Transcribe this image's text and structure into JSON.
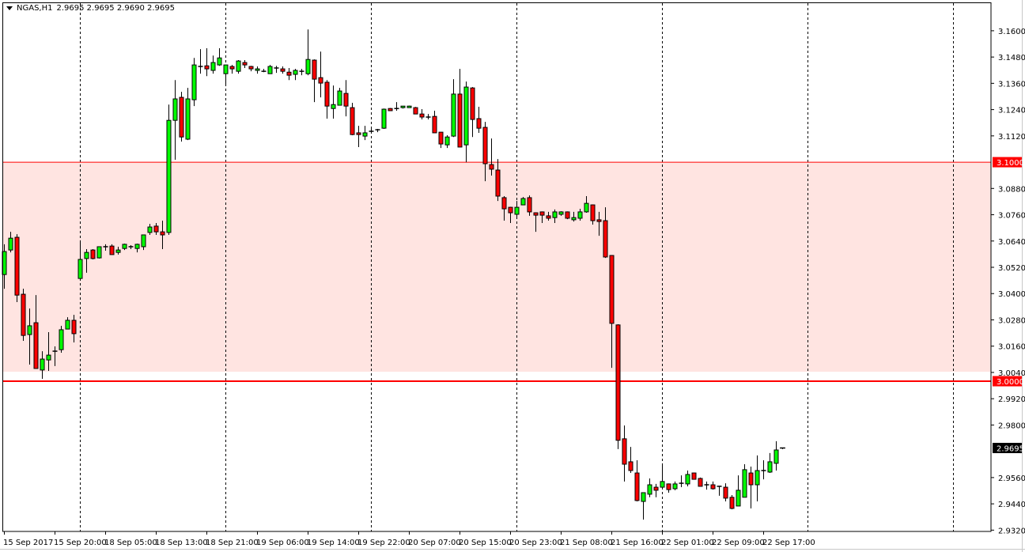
{
  "header": {
    "symbol": "NGAS,H1",
    "ohlc_readout": "2.9695 2.9695 2.9690 2.9695",
    "menu_icon": "triangle-down-icon"
  },
  "colors": {
    "bull": "#00FF00",
    "bear": "#FF0000",
    "outline": "#000000",
    "zone_fill": "#FFE4E1",
    "level_line": "#FF0000",
    "background": "#FFFFFF"
  },
  "chart_data": {
    "type": "candlestick",
    "title": "NGAS,H1",
    "timeframe": "H1",
    "ylim": [
      2.9314,
      3.1726
    ],
    "grid": "vertical dashed",
    "y_ticks": [
      "3.1600",
      "3.1480",
      "3.1360",
      "3.1240",
      "3.1120",
      "3.0880",
      "3.0760",
      "3.0640",
      "3.0520",
      "3.0400",
      "3.0280",
      "3.0160",
      "3.0040",
      "2.9920",
      "2.9800",
      "2.9560",
      "2.9440",
      "2.9320"
    ],
    "x_labels": [
      "15 Sep 2017",
      "15 Sep 20:00",
      "18 Sep 05:00",
      "18 Sep 13:00",
      "18 Sep 21:00",
      "19 Sep 06:00",
      "19 Sep 14:00",
      "19 Sep 22:00",
      "20 Sep 07:00",
      "20 Sep 15:00",
      "20 Sep 23:00",
      "21 Sep 08:00",
      "21 Sep 16:00",
      "22 Sep 01:00",
      "22 Sep 09:00",
      "22 Sep 17:00"
    ],
    "x_label_every_bars": 8,
    "zone": {
      "from": 3.0043,
      "to": 3.1
    },
    "levels": [
      {
        "price": 3.1,
        "label": "3.1000"
      },
      {
        "price": 3.0,
        "label": "3.0000"
      }
    ],
    "current_price": {
      "price": 2.9695,
      "label": "2.9695"
    },
    "ohlc_columns": [
      "open",
      "high",
      "low",
      "close"
    ],
    "candles": [
      [
        3.0487,
        3.0625,
        3.0422,
        3.0592
      ],
      [
        3.0599,
        3.0682,
        3.0588,
        3.0653
      ],
      [
        3.0657,
        3.0671,
        3.0361,
        3.0393
      ],
      [
        3.0397,
        3.0422,
        3.0184,
        3.0209
      ],
      [
        3.0213,
        3.0332,
        3.0076,
        3.0253
      ],
      [
        3.0267,
        3.0393,
        3.0058,
        3.0058
      ],
      [
        3.0051,
        3.0137,
        3.0011,
        3.0101
      ],
      [
        3.0097,
        3.0224,
        3.0047,
        3.0119
      ],
      [
        3.0137,
        3.0159,
        3.0069,
        3.0137
      ],
      [
        3.0144,
        3.0253,
        3.013,
        3.0235
      ],
      [
        3.0238,
        3.0292,
        3.0238,
        3.0278
      ],
      [
        3.0278,
        3.0303,
        3.0177,
        3.0217
      ],
      [
        3.0469,
        3.0643,
        3.0469,
        3.0556
      ],
      [
        3.056,
        3.0603,
        3.0495,
        3.0588
      ],
      [
        3.0599,
        3.0603,
        3.0556,
        3.056
      ],
      [
        3.0563,
        3.0614,
        3.056,
        3.0614
      ],
      [
        3.0614,
        3.0625,
        3.0596,
        3.0614
      ],
      [
        3.0617,
        3.0625,
        3.0578,
        3.0578
      ],
      [
        3.0588,
        3.0614,
        3.0578,
        3.0599
      ],
      [
        3.0606,
        3.0628,
        3.0599,
        3.0625
      ],
      [
        3.0614,
        3.0621,
        3.0603,
        3.0612
      ],
      [
        3.0606,
        3.0628,
        3.0588,
        3.0625
      ],
      [
        3.0614,
        3.067,
        3.0599,
        3.0668
      ],
      [
        3.0679,
        3.0718,
        3.0668,
        3.0704
      ],
      [
        3.0708,
        3.0722,
        3.0668,
        3.0682
      ],
      [
        3.0682,
        3.0733,
        3.0603,
        3.0668
      ],
      [
        3.0679,
        3.1263,
        3.0668,
        3.1191
      ],
      [
        3.1191,
        3.1375,
        3.1011,
        3.1289
      ],
      [
        3.1296,
        3.1321,
        3.1094,
        3.1115
      ],
      [
        3.1105,
        3.1339,
        3.1101,
        3.1289
      ],
      [
        3.1285,
        3.1476,
        3.1256,
        3.1444
      ],
      [
        3.1437,
        3.1516,
        3.1404,
        3.1437
      ],
      [
        3.144,
        3.152,
        3.1393,
        3.1426
      ],
      [
        3.1419,
        3.1487,
        3.1404,
        3.1455
      ],
      [
        3.1444,
        3.152,
        3.144,
        3.1476
      ],
      [
        3.1404,
        3.1444,
        3.1347,
        3.1444
      ],
      [
        3.1437,
        3.1444,
        3.1404,
        3.1426
      ],
      [
        3.1415,
        3.1466,
        3.1404,
        3.1462
      ],
      [
        3.1455,
        3.1466,
        3.143,
        3.1444
      ],
      [
        3.1437,
        3.144,
        3.1415,
        3.1426
      ],
      [
        3.1419,
        3.1437,
        3.1404,
        3.1426
      ],
      [
        3.1415,
        3.1426,
        3.1411,
        3.1415
      ],
      [
        3.1404,
        3.1444,
        3.1404,
        3.1437
      ],
      [
        3.143,
        3.144,
        3.1408,
        3.143
      ],
      [
        3.1426,
        3.1437,
        3.1404,
        3.1415
      ],
      [
        3.1411,
        3.143,
        3.1375,
        3.1397
      ],
      [
        3.1401,
        3.1426,
        3.1375,
        3.1419
      ],
      [
        3.1415,
        3.1426,
        3.1397,
        3.1415
      ],
      [
        3.1404,
        3.1606,
        3.1397,
        3.1469
      ],
      [
        3.1466,
        3.1469,
        3.1274,
        3.1379
      ],
      [
        3.1386,
        3.1505,
        3.1296,
        3.1361
      ],
      [
        3.1365,
        3.1375,
        3.1199,
        3.1256
      ],
      [
        3.1245,
        3.135,
        3.1199,
        3.1263
      ],
      [
        3.126,
        3.1339,
        3.126,
        3.1325
      ],
      [
        3.1314,
        3.1375,
        3.1209,
        3.1256
      ],
      [
        3.1249,
        3.1271,
        3.1123,
        3.1126
      ],
      [
        3.1134,
        3.1166,
        3.1069,
        3.1126
      ],
      [
        3.1119,
        3.1166,
        3.1101,
        3.1134
      ],
      [
        3.1141,
        3.1152,
        3.113,
        3.1141
      ],
      [
        3.1148,
        3.1152,
        3.1137,
        3.1148
      ],
      [
        3.1155,
        3.1245,
        3.1152,
        3.1242
      ],
      [
        3.1245,
        3.1247,
        3.1235,
        3.1235
      ],
      [
        3.1245,
        3.1274,
        3.1235,
        3.1245
      ],
      [
        3.1249,
        3.1256,
        3.1245,
        3.1256
      ],
      [
        3.1249,
        3.1258,
        3.1249,
        3.1256
      ],
      [
        3.1249,
        3.1252,
        3.122,
        3.122
      ],
      [
        3.122,
        3.1242,
        3.1195,
        3.1206
      ],
      [
        3.1206,
        3.122,
        3.1195,
        3.1206
      ],
      [
        3.1209,
        3.1235,
        3.1134,
        3.1134
      ],
      [
        3.1137,
        3.1137,
        3.1065,
        3.1083
      ],
      [
        3.1079,
        3.1123,
        3.1065,
        3.1115
      ],
      [
        3.1119,
        3.1379,
        3.1115,
        3.1311
      ],
      [
        3.1311,
        3.1426,
        3.1069,
        3.1069
      ],
      [
        3.1079,
        3.1368,
        3.1,
        3.1343
      ],
      [
        3.1339,
        3.1343,
        3.1115,
        3.1195
      ],
      [
        3.1199,
        3.1253,
        3.1134,
        3.1155
      ],
      [
        3.1159,
        3.1184,
        3.0913,
        3.0993
      ],
      [
        3.0989,
        3.1108,
        3.0939,
        3.0968
      ],
      [
        3.0964,
        3.1014,
        3.0823,
        3.0845
      ],
      [
        3.0838,
        3.0845,
        3.0733,
        3.0787
      ],
      [
        3.0794,
        3.0796,
        3.0722,
        3.0769
      ],
      [
        3.0762,
        3.0823,
        3.0747,
        3.0794
      ],
      [
        3.0805,
        3.0841,
        3.0805,
        3.0834
      ],
      [
        3.0838,
        3.0848,
        3.0755,
        3.0773
      ],
      [
        3.0769,
        3.0771,
        3.0682,
        3.0758
      ],
      [
        3.0773,
        3.0775,
        3.0722,
        3.0758
      ],
      [
        3.0755,
        3.0773,
        3.0733,
        3.0744
      ],
      [
        3.0747,
        3.0784,
        3.0722,
        3.0773
      ],
      [
        3.0762,
        3.0776,
        3.0755,
        3.0773
      ],
      [
        3.0773,
        3.0775,
        3.074,
        3.0744
      ],
      [
        3.0737,
        3.0773,
        3.0729,
        3.0747
      ],
      [
        3.0744,
        3.0787,
        3.0733,
        3.0773
      ],
      [
        3.0773,
        3.0845,
        3.0769,
        3.0812
      ],
      [
        3.0805,
        3.0807,
        3.0715,
        3.0733
      ],
      [
        3.0737,
        3.0773,
        3.0664,
        3.0729
      ],
      [
        3.0733,
        3.0794,
        3.0563,
        3.0567
      ],
      [
        3.0574,
        3.0575,
        3.0061,
        3.0264
      ],
      [
        3.0257,
        3.026,
        2.969,
        2.973
      ],
      [
        2.9737,
        2.9798,
        2.9542,
        2.9621
      ],
      [
        2.9632,
        2.97,
        2.9581,
        2.9592
      ],
      [
        2.9581,
        2.9639,
        2.9451,
        2.9455
      ],
      [
        2.9451,
        2.9491,
        2.9368,
        2.9491
      ],
      [
        2.9484,
        2.9556,
        2.947,
        2.9527
      ],
      [
        2.9516,
        2.9531,
        2.947,
        2.9502
      ],
      [
        2.9516,
        2.9625,
        2.9516,
        2.9542
      ],
      [
        2.9531,
        2.9533,
        2.9491,
        2.9505
      ],
      [
        2.9509,
        2.9542,
        2.9502,
        2.9531
      ],
      [
        2.9534,
        2.957,
        2.9516,
        2.9534
      ],
      [
        2.9531,
        2.9592,
        2.952,
        2.9574
      ],
      [
        2.9581,
        2.9583,
        2.9552,
        2.9552
      ],
      [
        2.9556,
        2.956,
        2.952,
        2.952
      ],
      [
        2.9527,
        2.9542,
        2.9505,
        2.9527
      ],
      [
        2.9527,
        2.9542,
        2.9505,
        2.9509
      ],
      [
        2.952,
        2.9522,
        2.9477,
        2.9516
      ],
      [
        2.9516,
        2.9534,
        2.9451,
        2.9466
      ],
      [
        2.947,
        2.948,
        2.9415,
        2.9419
      ],
      [
        2.943,
        2.957,
        2.943,
        2.9502
      ],
      [
        2.947,
        2.9621,
        2.947,
        2.9596
      ],
      [
        2.9581,
        2.961,
        2.9419,
        2.9527
      ],
      [
        2.9527,
        2.9661,
        2.9451,
        2.9592
      ],
      [
        2.9592,
        2.9639,
        2.9552,
        2.9592
      ],
      [
        2.9585,
        2.9672,
        2.9581,
        2.9632
      ],
      [
        2.9625,
        2.9726,
        2.9592,
        2.9686
      ],
      [
        2.9695,
        2.9695,
        2.969,
        2.9695
      ]
    ]
  }
}
